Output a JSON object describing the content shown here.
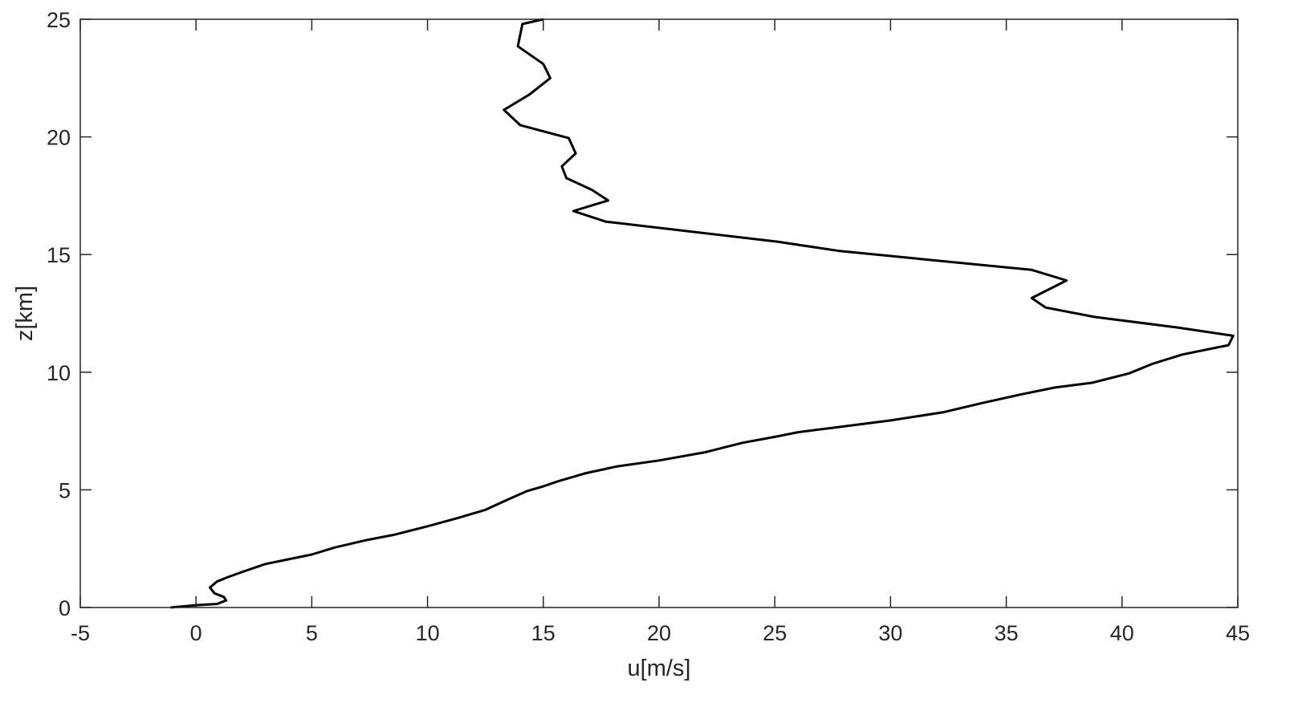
{
  "chart_data": {
    "type": "line",
    "title": "",
    "xlabel": "u[m/s]",
    "ylabel": "z[km]",
    "xlim": [
      -5,
      45
    ],
    "ylim": [
      0,
      25
    ],
    "xticks": [
      "-5",
      "0",
      "5",
      "10",
      "15",
      "20",
      "25",
      "30",
      "35",
      "40",
      "45"
    ],
    "yticks": [
      "0",
      "5",
      "10",
      "15",
      "20",
      "25"
    ],
    "grid": false,
    "box": true,
    "line_color": "#000000",
    "series": [
      {
        "x": [
          -1.1,
          0.0,
          0.9,
          1.3,
          1.2,
          0.8,
          0.6,
          0.9,
          1.4,
          2.1,
          3.0,
          4.0,
          5.0,
          6.0,
          7.3,
          8.6,
          10.0,
          11.3,
          12.5,
          13.5,
          14.3,
          15.0,
          15.6,
          16.8,
          18.2,
          20.0,
          22.0,
          23.6,
          25.0,
          26.0,
          27.6,
          30.0,
          32.3,
          34.0,
          35.6,
          37.1,
          38.7,
          40.3,
          41.3,
          42.6,
          44.6,
          44.8,
          42.4,
          38.8,
          36.7,
          36.1,
          37.6,
          36.1,
          27.8,
          25.1,
          17.7,
          16.3,
          17.8,
          17.1,
          16.0,
          15.8,
          16.4,
          16.1,
          14.0,
          13.3,
          14.4,
          15.3,
          15.0,
          13.9,
          14.1,
          15.0
        ],
        "y": [
          0.0,
          0.1,
          0.15,
          0.3,
          0.45,
          0.6,
          0.85,
          1.1,
          1.3,
          1.55,
          1.85,
          2.05,
          2.25,
          2.55,
          2.85,
          3.1,
          3.45,
          3.8,
          4.15,
          4.6,
          4.95,
          5.15,
          5.35,
          5.7,
          6.0,
          6.25,
          6.6,
          7.0,
          7.25,
          7.45,
          7.65,
          7.95,
          8.3,
          8.7,
          9.05,
          9.35,
          9.55,
          9.95,
          10.35,
          10.75,
          11.15,
          11.55,
          11.9,
          12.35,
          12.75,
          13.15,
          13.9,
          14.35,
          15.15,
          15.55,
          16.4,
          16.85,
          17.3,
          17.75,
          18.25,
          18.75,
          19.3,
          19.95,
          20.5,
          21.15,
          21.8,
          22.5,
          23.1,
          23.85,
          24.8,
          25.0
        ]
      }
    ]
  }
}
